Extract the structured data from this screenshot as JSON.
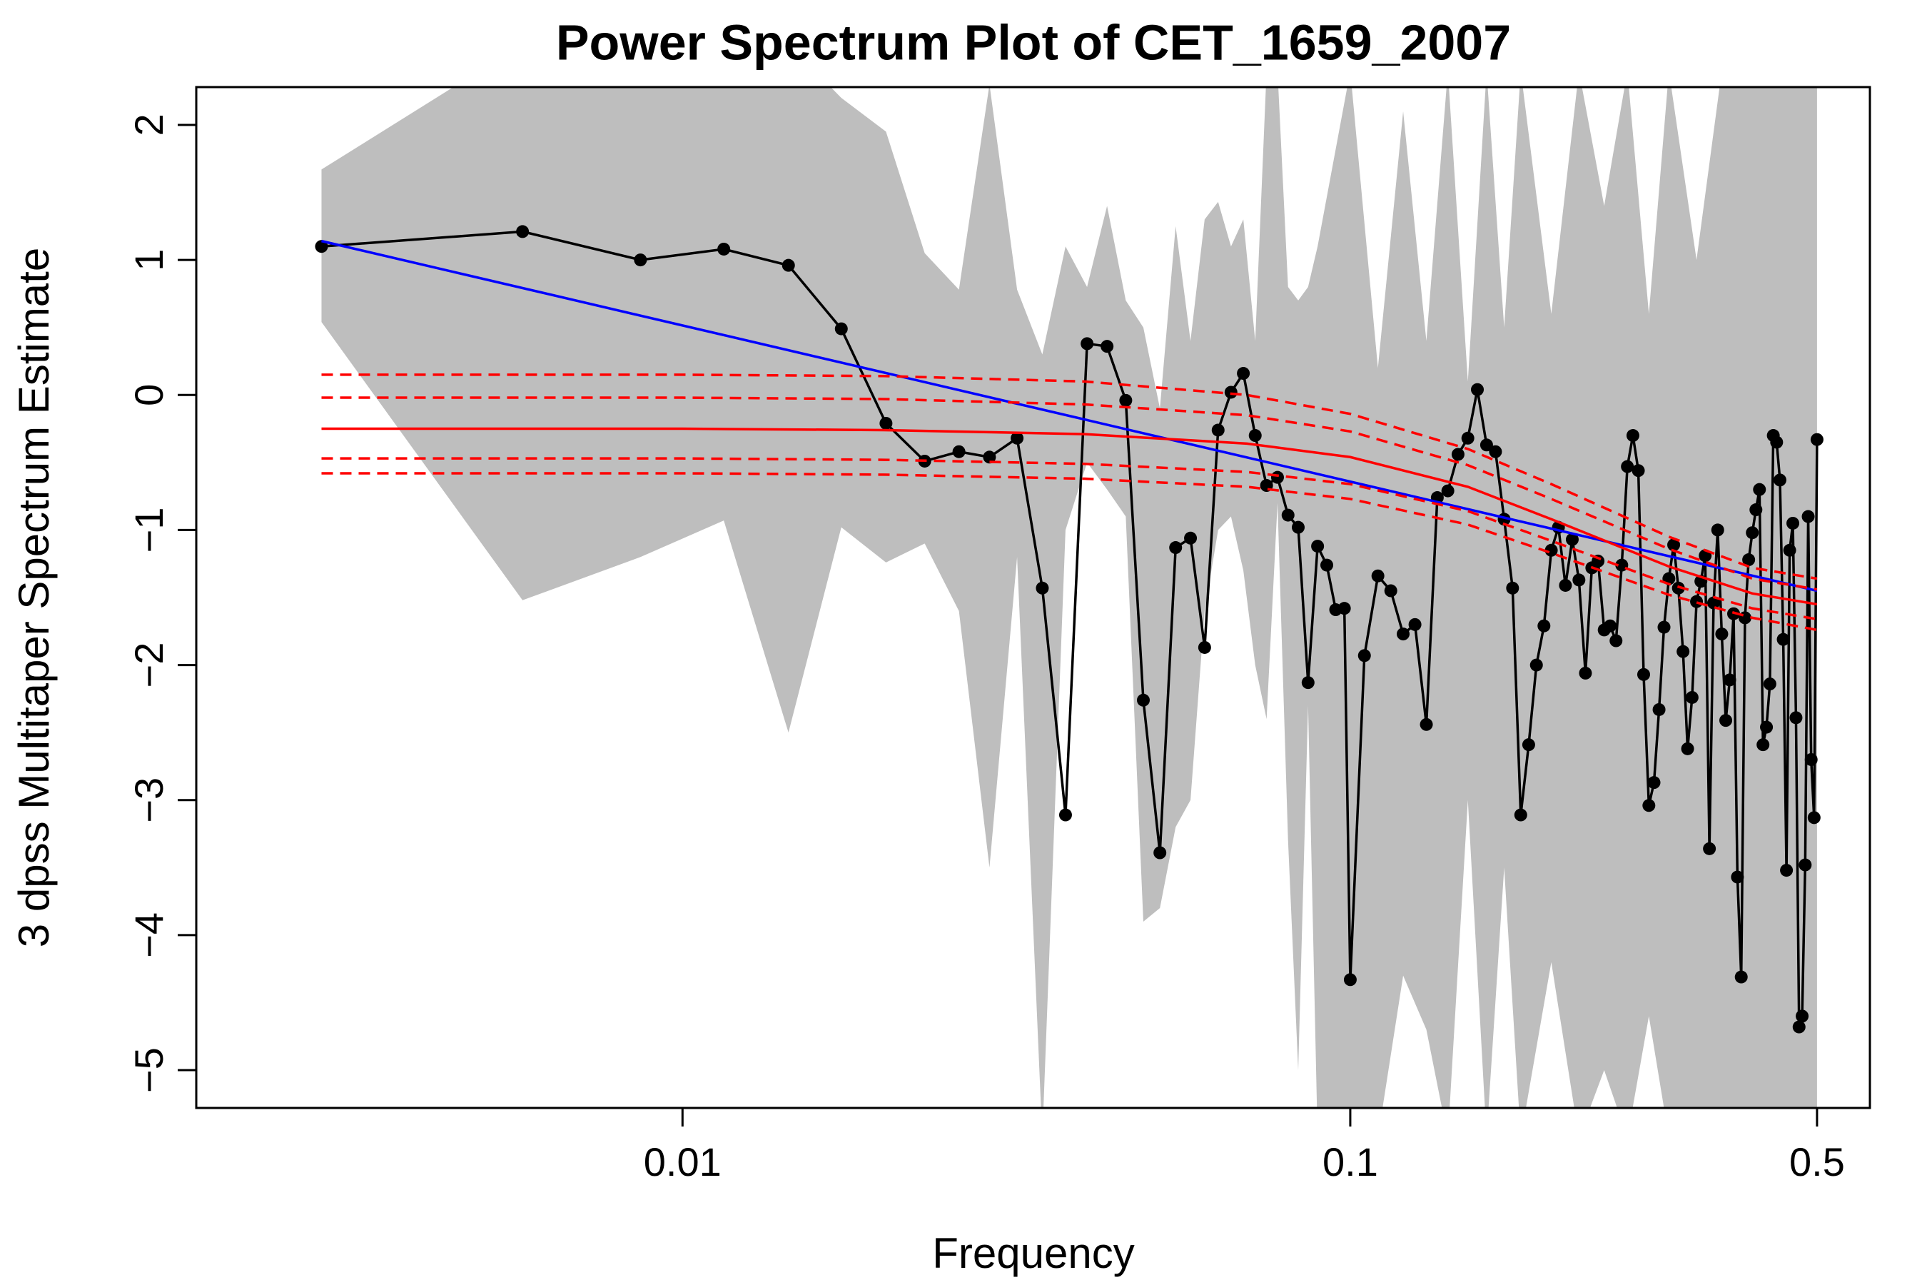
{
  "chart_data": {
    "type": "line",
    "title": "Power Spectrum Plot of CET_1659_2007",
    "xlabel": "Frequency",
    "ylabel": "3 dpss Multitaper Spectrum Estimate",
    "xlog": true,
    "xlim": [
      0.00187,
      0.6
    ],
    "ylim": [
      -5.28,
      2.28
    ],
    "xticks": [
      0.01,
      0.1,
      0.5
    ],
    "yticks": [
      {
        "value": -5,
        "label": "−5"
      },
      {
        "value": -4,
        "label": "−4"
      },
      {
        "value": -3,
        "label": "−3"
      },
      {
        "value": -2,
        "label": "−2"
      },
      {
        "value": -1,
        "label": "−1"
      },
      0,
      1,
      2
    ],
    "band": {
      "color": "#bebebe",
      "x": [
        0.00288,
        0.00576,
        0.00865,
        0.01153,
        0.01441,
        0.01729,
        0.02017,
        0.02305,
        0.02594,
        0.02882,
        0.0317,
        0.03458,
        0.03746,
        0.04035,
        0.04323,
        0.04611,
        0.04899,
        0.05187,
        0.05476,
        0.05764,
        0.06052,
        0.0634,
        0.06628,
        0.06916,
        0.07205,
        0.07493,
        0.07781,
        0.08069,
        0.08357,
        0.08646,
        0.08934,
        0.1,
        0.11,
        0.12,
        0.13,
        0.14,
        0.15,
        0.16,
        0.17,
        0.18,
        0.2,
        0.22,
        0.24,
        0.26,
        0.28,
        0.3,
        0.33,
        0.36,
        0.4,
        0.45,
        0.5
      ],
      "upper": [
        1.67,
        2.6,
        2.8,
        2.9,
        2.6,
        2.2,
        1.95,
        1.05,
        0.78,
        2.3,
        0.78,
        0.3,
        1.1,
        0.8,
        1.4,
        0.7,
        0.5,
        -0.1,
        1.25,
        0.4,
        1.3,
        1.43,
        1.1,
        1.3,
        0.4,
        2.4,
        2.4,
        0.8,
        0.7,
        0.8,
        1.1,
        2.4,
        0.2,
        2.1,
        0.4,
        2.4,
        0.1,
        2.4,
        0.5,
        2.4,
        0.6,
        2.4,
        1.4,
        2.4,
        0.6,
        2.4,
        1.0,
        2.4,
        2.4,
        2.4,
        2.4
      ],
      "lower": [
        0.54,
        -1.52,
        -1.2,
        -0.93,
        -2.5,
        -0.98,
        -1.24,
        -1.1,
        -1.6,
        -3.5,
        -1.2,
        -5.5,
        -1.0,
        -0.5,
        -0.7,
        -0.9,
        -3.9,
        -3.8,
        -3.2,
        -3.0,
        -1.6,
        -1.0,
        -0.9,
        -1.3,
        -2.0,
        -2.4,
        -0.8,
        -3.3,
        -5.0,
        -2.3,
        -5.5,
        -5.5,
        -5.5,
        -4.3,
        -4.7,
        -5.5,
        -3.0,
        -5.5,
        -3.5,
        -5.5,
        -4.2,
        -5.5,
        -5.0,
        -5.5,
        -4.6,
        -5.5,
        -5.5,
        -5.5,
        -5.5,
        -5.5,
        -5.5
      ]
    },
    "series": [
      {
        "color": "#000000",
        "markers": true,
        "x": [
          0.00288,
          0.00576,
          0.00865,
          0.01153,
          0.01441,
          0.01729,
          0.02017,
          0.02305,
          0.02594,
          0.02882,
          0.0317,
          0.03458,
          0.03746,
          0.04035,
          0.04323,
          0.04611,
          0.04899,
          0.05187,
          0.05476,
          0.05764,
          0.06052,
          0.0634,
          0.06628,
          0.06916,
          0.07205,
          0.07493,
          0.07781,
          0.08069,
          0.08357,
          0.08646,
          0.08934,
          0.09222,
          0.0951,
          0.09798,
          0.1,
          0.105,
          0.11,
          0.115,
          0.12,
          0.125,
          0.13,
          0.135,
          0.14,
          0.145,
          0.15,
          0.155,
          0.16,
          0.165,
          0.17,
          0.175,
          0.18,
          0.185,
          0.19,
          0.195,
          0.2,
          0.205,
          0.21,
          0.215,
          0.22,
          0.225,
          0.23,
          0.235,
          0.24,
          0.245,
          0.25,
          0.255,
          0.26,
          0.265,
          0.27,
          0.275,
          0.28,
          0.285,
          0.29,
          0.295,
          0.3,
          0.305,
          0.31,
          0.315,
          0.32,
          0.325,
          0.33,
          0.335,
          0.34,
          0.345,
          0.35,
          0.355,
          0.36,
          0.365,
          0.37,
          0.375,
          0.38,
          0.385,
          0.39,
          0.395,
          0.4,
          0.405,
          0.41,
          0.415,
          0.42,
          0.425,
          0.43,
          0.435,
          0.44,
          0.445,
          0.45,
          0.455,
          0.46,
          0.465,
          0.47,
          0.475,
          0.48,
          0.485,
          0.49,
          0.495,
          0.5
        ],
        "values": [
          1.1,
          1.21,
          1.0,
          1.08,
          0.96,
          0.49,
          -0.21,
          -0.49,
          -0.42,
          -0.46,
          -0.32,
          -1.43,
          -3.11,
          0.38,
          0.36,
          -0.04,
          -2.26,
          -3.39,
          -1.13,
          -1.06,
          -1.87,
          -0.26,
          0.02,
          0.16,
          -0.3,
          -0.67,
          -0.61,
          -0.89,
          -0.98,
          -2.13,
          -1.12,
          -1.26,
          -1.59,
          -1.58,
          -4.33,
          -1.93,
          -1.34,
          -1.45,
          -1.77,
          -1.7,
          -2.44,
          -0.76,
          -0.71,
          -0.44,
          -0.32,
          0.04,
          -0.37,
          -0.42,
          -0.92,
          -1.43,
          -3.11,
          -2.59,
          -2.0,
          -1.71,
          -1.15,
          -0.98,
          -1.41,
          -1.07,
          -1.37,
          -2.06,
          -1.28,
          -1.23,
          -1.74,
          -1.71,
          -1.82,
          -1.26,
          -0.53,
          -0.3,
          -0.56,
          -2.07,
          -3.04,
          -2.87,
          -2.33,
          -1.72,
          -1.36,
          -1.11,
          -1.43,
          -1.9,
          -2.62,
          -2.24,
          -1.53,
          -1.38,
          -1.19,
          -3.36,
          -1.54,
          -1.0,
          -1.77,
          -2.41,
          -2.11,
          -1.62,
          -3.57,
          -4.31,
          -1.65,
          -1.22,
          -1.02,
          -0.85,
          -0.7,
          -2.59,
          -2.46,
          -2.14,
          -0.3,
          -0.35,
          -0.63,
          -1.81,
          -3.52,
          -1.15,
          -0.95,
          -2.39,
          -4.68,
          -4.6,
          -3.48,
          -0.9,
          -2.7,
          -3.13,
          -0.33
        ]
      },
      {
        "color": "#0000ff",
        "x": [
          0.00288,
          0.5
        ],
        "values": [
          1.14,
          -1.45
        ]
      },
      {
        "color": "#ff0000",
        "x": [
          0.00288,
          0.01,
          0.02,
          0.04,
          0.07,
          0.1,
          0.15,
          0.2,
          0.3,
          0.4,
          0.5
        ],
        "values": [
          -0.25,
          -0.25,
          -0.26,
          -0.29,
          -0.36,
          -0.46,
          -0.68,
          -0.92,
          -1.27,
          -1.47,
          -1.55
        ]
      },
      {
        "color": "#ff0000",
        "dash": true,
        "x": [
          0.00288,
          0.01,
          0.02,
          0.04,
          0.07,
          0.1,
          0.15,
          0.2,
          0.3,
          0.4,
          0.5
        ],
        "values": [
          0.15,
          0.15,
          0.14,
          0.1,
          0.0,
          -0.14,
          -0.4,
          -0.66,
          -1.05,
          -1.28,
          -1.36
        ]
      },
      {
        "color": "#ff0000",
        "dash": true,
        "x": [
          0.00288,
          0.01,
          0.02,
          0.04,
          0.07,
          0.1,
          0.15,
          0.2,
          0.3,
          0.4,
          0.5
        ],
        "values": [
          -0.02,
          -0.02,
          -0.03,
          -0.07,
          -0.15,
          -0.27,
          -0.52,
          -0.77,
          -1.14,
          -1.36,
          -1.44
        ]
      },
      {
        "color": "#ff0000",
        "dash": true,
        "x": [
          0.00288,
          0.01,
          0.02,
          0.04,
          0.07,
          0.1,
          0.15,
          0.2,
          0.3,
          0.4,
          0.5
        ],
        "values": [
          -0.47,
          -0.47,
          -0.48,
          -0.51,
          -0.57,
          -0.66,
          -0.86,
          -1.08,
          -1.4,
          -1.58,
          -1.66
        ]
      },
      {
        "color": "#ff0000",
        "dash": true,
        "x": [
          0.00288,
          0.01,
          0.02,
          0.04,
          0.07,
          0.1,
          0.15,
          0.2,
          0.3,
          0.4,
          0.5
        ],
        "values": [
          -0.58,
          -0.58,
          -0.59,
          -0.62,
          -0.68,
          -0.77,
          -0.96,
          -1.17,
          -1.48,
          -1.65,
          -1.74
        ]
      }
    ]
  }
}
